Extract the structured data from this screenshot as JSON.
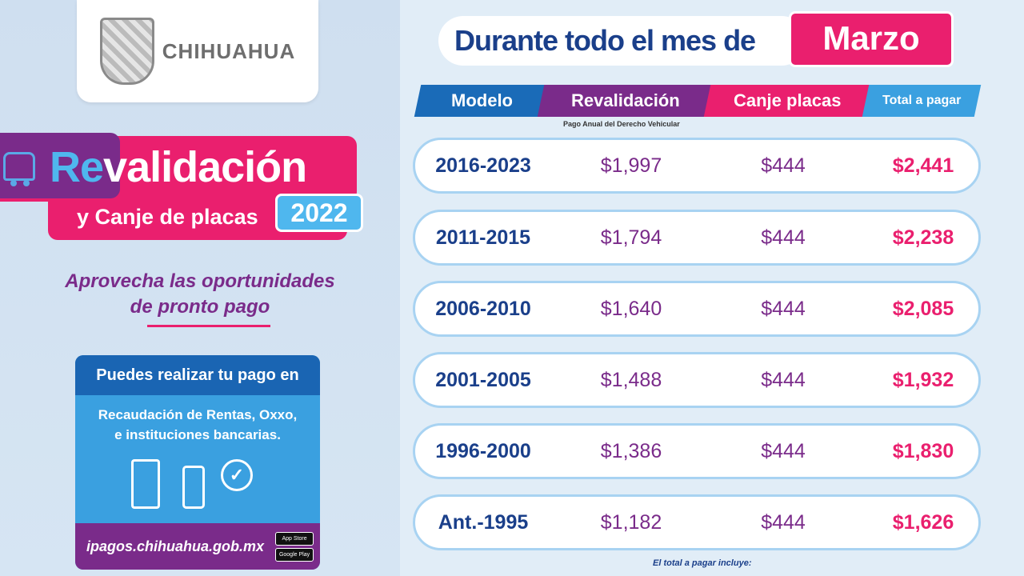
{
  "logo": {
    "text": "CHIHUAHUA"
  },
  "banner": {
    "title_accent": "Re",
    "title_rest": "validación",
    "subtitle": "y Canje de placas",
    "year": "2022",
    "tagline_line1": "Aprovecha las oportunidades",
    "tagline_line2": "de pronto pago"
  },
  "payment": {
    "heading": "Puedes realizar tu pago en",
    "line1": "Recaudación de Rentas, Oxxo,",
    "line2": "e instituciones bancarias.",
    "url": "ipagos.chihuahua.gob.mx",
    "store_apple": "App Store",
    "store_google": "Google Play"
  },
  "header": {
    "text": "Durante todo el mes de",
    "month": "Marzo"
  },
  "table": {
    "headers": {
      "modelo": "Modelo",
      "revalidacion": "Revalidación",
      "canje": "Canje placas",
      "total": "Total a pagar"
    },
    "revalidacion_note": "Pago Anual del Derecho Vehicular",
    "rows": [
      {
        "modelo": "2016-2023",
        "revalidacion": "$1,997",
        "canje": "$444",
        "total": "$2,441"
      },
      {
        "modelo": "2011-2015",
        "revalidacion": "$1,794",
        "canje": "$444",
        "total": "$2,238"
      },
      {
        "modelo": "2006-2010",
        "revalidacion": "$1,640",
        "canje": "$444",
        "total": "$2,085"
      },
      {
        "modelo": "2001-2005",
        "revalidacion": "$1,488",
        "canje": "$444",
        "total": "$1,932"
      },
      {
        "modelo": "1996-2000",
        "revalidacion": "$1,386",
        "canje": "$444",
        "total": "$1,830"
      },
      {
        "modelo": "Ant.-1995",
        "revalidacion": "$1,182",
        "canje": "$444",
        "total": "$1,626"
      }
    ]
  },
  "footer": {
    "note": "El total a pagar incluye:"
  }
}
